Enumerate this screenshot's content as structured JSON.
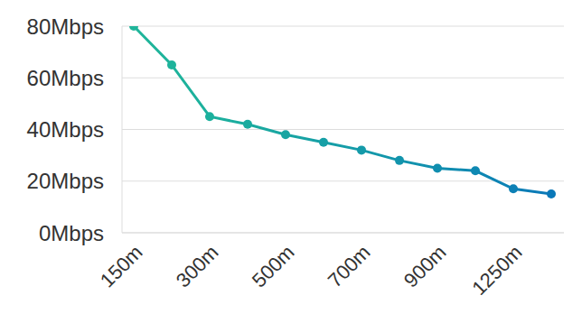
{
  "chart_data": {
    "type": "line",
    "categories": [
      "150m",
      null,
      "300m",
      null,
      "500m",
      null,
      "700m",
      null,
      "900m",
      null,
      "1250m",
      null
    ],
    "values": [
      80,
      65,
      45,
      42,
      38,
      35,
      32,
      28,
      25,
      24,
      17,
      15
    ],
    "colors": [
      "#20b59a",
      "#1eb39b",
      "#1cb09d",
      "#1aab9f",
      "#18a5a2",
      "#169fa6",
      "#149aa9",
      "#1294ac",
      "#108eaf",
      "#0e88b2",
      "#0c80b5",
      "#0a78b8"
    ],
    "marker": "circle",
    "ylim": [
      0,
      80
    ],
    "yticks": [
      {
        "value": 0,
        "label": "0Mbps"
      },
      {
        "value": 20,
        "label": "20Mbps"
      },
      {
        "value": 40,
        "label": "40Mbps"
      },
      {
        "value": 60,
        "label": "60Mbps"
      },
      {
        "value": 80,
        "label": "80Mbps"
      }
    ],
    "grid": true
  }
}
